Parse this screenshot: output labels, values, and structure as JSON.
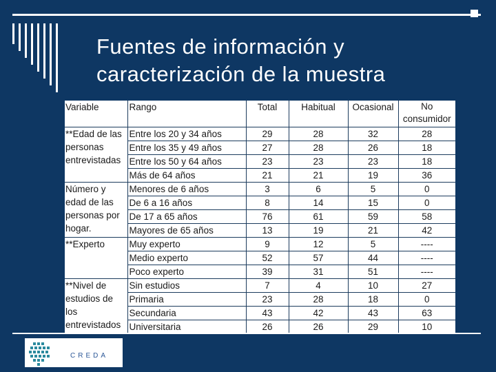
{
  "title": {
    "line1": "Fuentes de información y",
    "line2": "caracterización de la muestra"
  },
  "table": {
    "headers": [
      "Variable",
      "Rango",
      "Total",
      "Habitual",
      "Ocasional",
      "No",
      "consumidor"
    ],
    "groups": [
      {
        "variable": "**Edad de las personas entrevistadas",
        "rows": [
          [
            "Entre los 20 y 34 años",
            "29",
            "28",
            "32",
            "28"
          ],
          [
            "Entre los 35 y 49 años",
            "27",
            "28",
            "26",
            "18"
          ],
          [
            "Entre los 50 y 64 años",
            "23",
            "23",
            "23",
            "18"
          ],
          [
            "Más de 64 años",
            "21",
            "21",
            "19",
            "36"
          ]
        ]
      },
      {
        "variable": "Número y edad de las personas por hogar.",
        "rows": [
          [
            "Menores de 6 años",
            "3",
            "6",
            "5",
            "0"
          ],
          [
            "De 6 a 16 años",
            "8",
            "14",
            "15",
            "0"
          ],
          [
            "De 17 a 65 años",
            "76",
            "61",
            "59",
            "58"
          ],
          [
            "Mayores de 65 años",
            "13",
            "19",
            "21",
            "42"
          ]
        ]
      },
      {
        "variable": "**Experto",
        "rows": [
          [
            "Muy experto",
            "9",
            "12",
            "5",
            "----"
          ],
          [
            "Medio experto",
            "52",
            "57",
            "44",
            "----"
          ],
          [
            "Poco experto",
            "39",
            "31",
            "51",
            "----"
          ]
        ]
      },
      {
        "variable": "**Nivel de estudios de los entrevistados",
        "rows": [
          [
            "Sin estudios",
            "7",
            "4",
            "10",
            "27"
          ],
          [
            "Primaria",
            "23",
            "28",
            "18",
            "0"
          ],
          [
            "Secundaria",
            "43",
            "42",
            "43",
            "63"
          ],
          [
            "Universitaria",
            "26",
            "26",
            "29",
            "10"
          ]
        ]
      }
    ]
  },
  "logo": {
    "text": "CREDA"
  },
  "colors": {
    "background": "#0e3763",
    "table_bg": "#ffffff",
    "logo_text": "#2b5797"
  }
}
